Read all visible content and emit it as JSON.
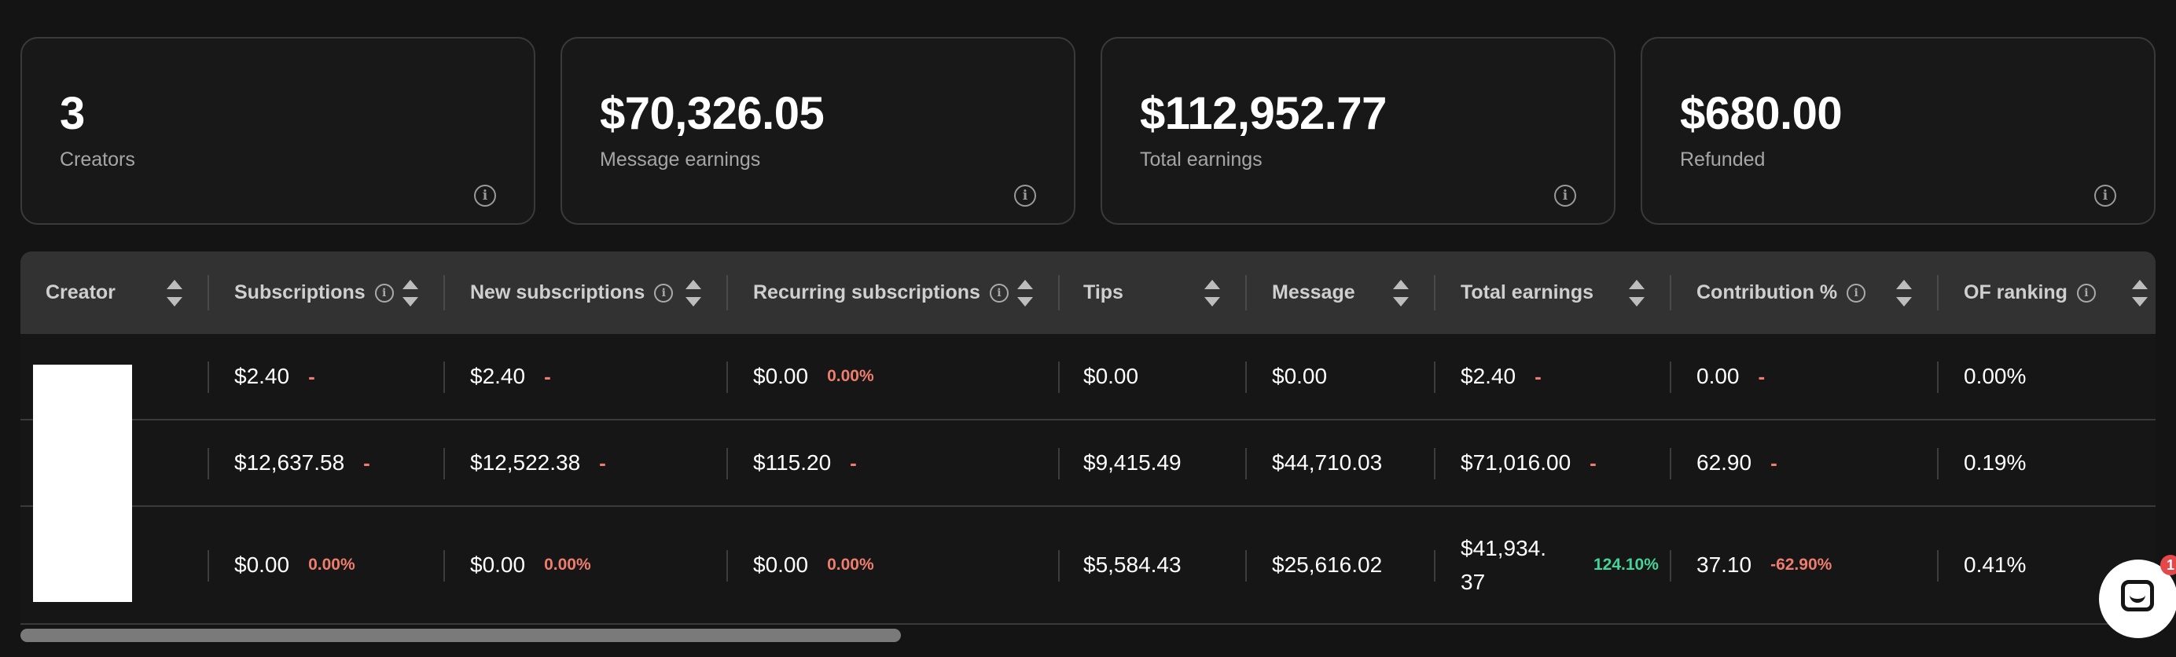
{
  "stats": [
    {
      "value": "3",
      "label": "Creators"
    },
    {
      "value": "$70,326.05",
      "label": "Message earnings"
    },
    {
      "value": "$112,952.77",
      "label": "Total earnings"
    },
    {
      "value": "$680.00",
      "label": "Refunded"
    }
  ],
  "table": {
    "columns": [
      {
        "label": "Creator",
        "info": false
      },
      {
        "label": "Subscriptions",
        "info": true
      },
      {
        "label": "New subscriptions",
        "info": true
      },
      {
        "label": "Recurring subscriptions",
        "info": true
      },
      {
        "label": "Tips",
        "info": false
      },
      {
        "label": "Message",
        "info": false
      },
      {
        "label": "Total earnings",
        "info": false
      },
      {
        "label": "Contribution %",
        "info": true
      },
      {
        "label": "OF ranking",
        "info": true
      }
    ],
    "rows": [
      {
        "subscriptions": {
          "value": "$2.40",
          "delta": "-"
        },
        "new_subscriptions": {
          "value": "$2.40",
          "delta": "-"
        },
        "recurring_subscriptions": {
          "value": "$0.00",
          "delta": "0.00%"
        },
        "tips": "$0.00",
        "message": "$0.00",
        "total_earnings": {
          "value_line1": "$2.40",
          "value_line2": "",
          "delta": "-"
        },
        "contribution": {
          "value": "0.00",
          "delta": "-"
        },
        "of_ranking": "0.00%"
      },
      {
        "subscriptions": {
          "value": "$12,637.58",
          "delta": "-"
        },
        "new_subscriptions": {
          "value": "$12,522.38",
          "delta": "-"
        },
        "recurring_subscriptions": {
          "value": "$115.20",
          "delta": "-"
        },
        "tips": "$9,415.49",
        "message": "$44,710.03",
        "total_earnings": {
          "value_line1": "$71,016.00",
          "value_line2": "",
          "delta": "-"
        },
        "contribution": {
          "value": "62.90",
          "delta": "-"
        },
        "of_ranking": "0.19%"
      },
      {
        "subscriptions": {
          "value": "$0.00",
          "delta": "0.00%"
        },
        "new_subscriptions": {
          "value": "$0.00",
          "delta": "0.00%"
        },
        "recurring_subscriptions": {
          "value": "$0.00",
          "delta": "0.00%"
        },
        "tips": "$5,584.43",
        "message": "$25,616.02",
        "total_earnings": {
          "value_line1": "$41,934.",
          "value_line2": "37",
          "delta": "124.10%"
        },
        "contribution": {
          "value": "37.10",
          "delta": "-62.90%"
        },
        "of_ranking": "0.41%"
      }
    ]
  },
  "chat_badge": "1",
  "colors": {
    "bg": "#141414",
    "card_border": "#3a3a3a",
    "header_bg": "#323232",
    "negative": "#ef7d6e",
    "positive": "#45d39a"
  }
}
